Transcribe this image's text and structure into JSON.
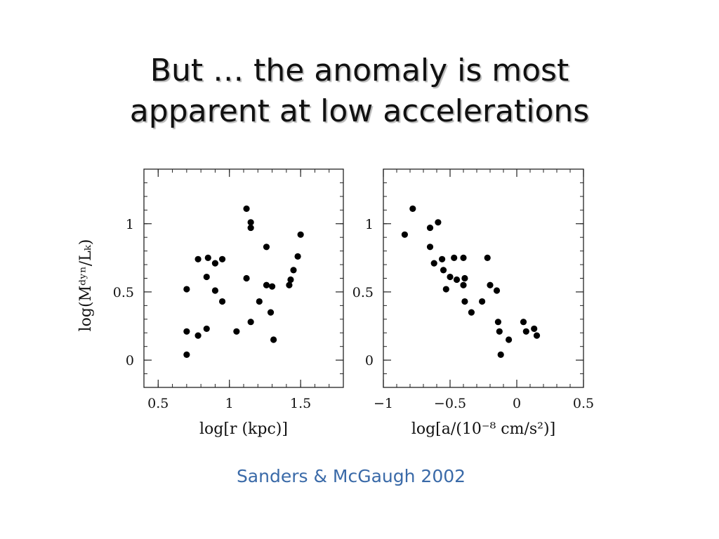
{
  "slide": {
    "title_line1": "But … the anomaly is most",
    "title_line2": "apparent at low accelerations",
    "citation": "Sanders & McGaugh 2002",
    "citation_color": "#3a6aa8"
  },
  "chart_data": [
    {
      "type": "scatter",
      "title": "",
      "xlabel": "log[r (kpc)]",
      "ylabel": "log(Mᵈʸⁿ/Lₖ)",
      "xlim": [
        0.4,
        1.8
      ],
      "ylim": [
        -0.2,
        1.4
      ],
      "xticks": [
        0.5,
        1,
        1.5
      ],
      "xtick_labels": [
        "0.5",
        "1",
        "1.5"
      ],
      "yticks": [
        0,
        0.5,
        1
      ],
      "ytick_labels": [
        "0",
        "0.5",
        "1"
      ],
      "points": [
        [
          0.7,
          0.04
        ],
        [
          0.7,
          0.21
        ],
        [
          0.7,
          0.52
        ],
        [
          0.78,
          0.18
        ],
        [
          0.78,
          0.74
        ],
        [
          0.84,
          0.23
        ],
        [
          0.84,
          0.61
        ],
        [
          0.85,
          0.75
        ],
        [
          0.9,
          0.51
        ],
        [
          0.9,
          0.71
        ],
        [
          0.95,
          0.74
        ],
        [
          0.95,
          0.43
        ],
        [
          1.05,
          0.21
        ],
        [
          1.12,
          1.11
        ],
        [
          1.12,
          0.6
        ],
        [
          1.15,
          1.01
        ],
        [
          1.15,
          0.97
        ],
        [
          1.15,
          0.28
        ],
        [
          1.21,
          0.43
        ],
        [
          1.26,
          0.83
        ],
        [
          1.26,
          0.55
        ],
        [
          1.29,
          0.35
        ],
        [
          1.3,
          0.54
        ],
        [
          1.31,
          0.15
        ],
        [
          1.42,
          0.55
        ],
        [
          1.43,
          0.59
        ],
        [
          1.45,
          0.66
        ],
        [
          1.48,
          0.76
        ],
        [
          1.5,
          0.92
        ]
      ]
    },
    {
      "type": "scatter",
      "title": "",
      "xlabel": "log[a/(10⁻⁸ cm/s²)]",
      "ylabel": "",
      "xlim": [
        -1.0,
        0.5
      ],
      "ylim": [
        -0.2,
        1.4
      ],
      "xticks": [
        -1,
        -0.5,
        0,
        0.5
      ],
      "xtick_labels": [
        "−1",
        "−0.5",
        "0",
        "0.5"
      ],
      "yticks": [
        0,
        0.5,
        1
      ],
      "ytick_labels": [
        "0",
        "0.5",
        "1"
      ],
      "points": [
        [
          -0.84,
          0.92
        ],
        [
          -0.78,
          1.11
        ],
        [
          -0.65,
          0.97
        ],
        [
          -0.65,
          0.83
        ],
        [
          -0.62,
          0.71
        ],
        [
          -0.59,
          1.01
        ],
        [
          -0.56,
          0.74
        ],
        [
          -0.55,
          0.66
        ],
        [
          -0.53,
          0.52
        ],
        [
          -0.5,
          0.61
        ],
        [
          -0.47,
          0.75
        ],
        [
          -0.45,
          0.59
        ],
        [
          -0.4,
          0.75
        ],
        [
          -0.4,
          0.55
        ],
        [
          -0.39,
          0.6
        ],
        [
          -0.39,
          0.43
        ],
        [
          -0.34,
          0.35
        ],
        [
          -0.26,
          0.43
        ],
        [
          -0.22,
          0.75
        ],
        [
          -0.2,
          0.55
        ],
        [
          -0.15,
          0.51
        ],
        [
          -0.14,
          0.28
        ],
        [
          -0.13,
          0.21
        ],
        [
          -0.12,
          0.04
        ],
        [
          -0.06,
          0.15
        ],
        [
          0.05,
          0.28
        ],
        [
          0.07,
          0.21
        ],
        [
          0.13,
          0.23
        ],
        [
          0.15,
          0.18
        ]
      ]
    }
  ]
}
